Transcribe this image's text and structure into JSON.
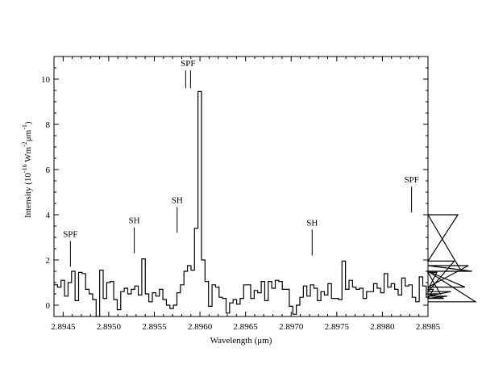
{
  "chart_data": {
    "type": "line",
    "style": "step",
    "title": "",
    "xlabel": "Wavelength  (μm)",
    "ylabel_parts": {
      "prefix": "Intensity   (10",
      "exp1": "-16",
      "mid": " Wm",
      "exp2": "-2",
      "mid2": "μm",
      "exp3": "-1",
      "suffix": ")"
    },
    "xlim": [
      2.8944,
      2.8985
    ],
    "ylim": [
      -0.5,
      11
    ],
    "xticks": [
      2.8945,
      2.895,
      2.8955,
      2.896,
      2.8965,
      2.897,
      2.8975,
      2.898,
      2.8985
    ],
    "xtick_labels": [
      "2.8945",
      "2.8950",
      "2.8955",
      "2.8960",
      "2.8965",
      "2.8970",
      "2.8975",
      "2.8980",
      "2.8985"
    ],
    "yticks": [
      0,
      2,
      4,
      6,
      8,
      10
    ],
    "ytick_labels": [
      "0",
      "2",
      "4",
      "6",
      "8",
      "10"
    ],
    "grid": false,
    "legend": "none",
    "line_color": "#000000",
    "series": [
      {
        "bin_width": 3.85e-05,
        "x_start": 2.8944,
        "values": [
          0.9,
          0.8,
          1.1,
          0.4,
          1.0,
          1.5,
          0.2,
          1.45,
          1.4,
          0.7,
          0.5,
          0.25,
          -0.5,
          1.55,
          0.3,
          1.0,
          1.05,
          0.25,
          -0.2,
          0.6,
          0.75,
          0.5,
          0.7,
          0.85,
          0.45,
          2.05,
          0.5,
          0.15,
          0.55,
          0.4,
          0.7,
          0.25,
          0.0,
          -0.15,
          0.0,
          0.55,
          0.9,
          1.5,
          1.75,
          1.55,
          3.4,
          9.45,
          2.0,
          1.05,
          -0.05,
          0.9,
          0.8,
          0.35,
          0.3,
          -0.35,
          0.1,
          0.25,
          0.05,
          0.3,
          0.9,
          0.9,
          0.3,
          0.65,
          0.55,
          1.05,
          0.2,
          1.05,
          0.75,
          1.1,
          1.05,
          0.7,
          0.7,
          -0.05,
          -0.4,
          0.0,
          0.35,
          0.85,
          0.4,
          0.9,
          0.75,
          0.2,
          0.6,
          0.45,
          0.95,
          0.3,
          0.3,
          0.25,
          1.95,
          0.7,
          1.1,
          0.8,
          0.7,
          0.75,
          0.3,
          0.6,
          0.6,
          0.95,
          0.75,
          0.55,
          1.4,
          0.8,
          0.95,
          0.7,
          0.45,
          1.2,
          0.85,
          0.9,
          0.35,
          0.15,
          1.25,
          0.85,
          0.35,
          0.3,
          0.7,
          1.45,
          0.5,
          0.3,
          0.4,
          0.6,
          1.95,
          4.0,
          1.5,
          0.8,
          1.75,
          1.5,
          0.15
        ]
      }
    ],
    "annotations": [
      {
        "label": "SPF",
        "x": 2.89458,
        "y": 1.7,
        "lines": 1
      },
      {
        "label": "SH",
        "x": 2.89528,
        "y": 2.3,
        "lines": 1
      },
      {
        "label": "SH",
        "x": 2.89575,
        "y": 3.2,
        "lines": 1
      },
      {
        "label": "SPF",
        "x": 2.89587,
        "y": 9.6,
        "lines": 2
      },
      {
        "label": "SH",
        "x": 2.89723,
        "y": 2.2,
        "lines": 1
      },
      {
        "label": "SPF",
        "x": 2.89832,
        "y": 4.1,
        "lines": 1
      }
    ]
  }
}
